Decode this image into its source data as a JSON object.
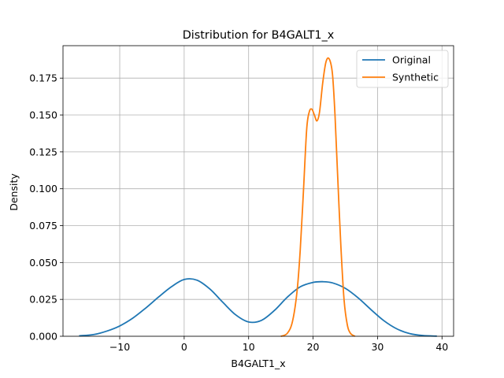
{
  "chart_data": {
    "type": "line",
    "title": "Distribution for B4GALT1_x",
    "xlabel": "B4GALT1_x",
    "ylabel": "Density",
    "xlim": [
      -18.8,
      41.8
    ],
    "ylim": [
      0,
      0.197
    ],
    "xticks": [
      -10,
      0,
      10,
      20,
      30,
      40
    ],
    "xtick_labels": [
      "−10",
      "0",
      "10",
      "20",
      "30",
      "40"
    ],
    "yticks": [
      0,
      0.025,
      0.05,
      0.075,
      0.1,
      0.125,
      0.15,
      0.175
    ],
    "ytick_labels": [
      "0.000",
      "0.025",
      "0.050",
      "0.075",
      "0.100",
      "0.125",
      "0.150",
      "0.175"
    ],
    "grid": true,
    "legend_position": "top-right",
    "series": [
      {
        "name": "Original",
        "color": "#1f77b4",
        "x": [
          -16.3,
          -14,
          -12,
          -10,
          -8,
          -6,
          -4,
          -2,
          0,
          2,
          4,
          6,
          8,
          10,
          12,
          14,
          16,
          18,
          20,
          21.5,
          23,
          25,
          27,
          29,
          31,
          33,
          35,
          37,
          39.2
        ],
        "y": [
          0.0003,
          0.0012,
          0.0035,
          0.007,
          0.0122,
          0.019,
          0.0265,
          0.0335,
          0.0385,
          0.038,
          0.032,
          0.023,
          0.0145,
          0.0097,
          0.0108,
          0.0175,
          0.0265,
          0.0335,
          0.0365,
          0.037,
          0.0362,
          0.0325,
          0.026,
          0.018,
          0.0105,
          0.005,
          0.0018,
          0.0005,
          0.0001
        ]
      },
      {
        "name": "Synthetic",
        "color": "#ff7f0e",
        "x": [
          15.0,
          16.0,
          16.8,
          17.5,
          18.0,
          18.5,
          19.0,
          19.4,
          19.8,
          20.2,
          20.6,
          21.0,
          21.5,
          22.0,
          22.5,
          23.0,
          23.4,
          23.8,
          24.3,
          24.8,
          25.3,
          25.8,
          26.5
        ],
        "y": [
          0.0,
          0.002,
          0.01,
          0.03,
          0.058,
          0.098,
          0.14,
          0.152,
          0.154,
          0.15,
          0.146,
          0.152,
          0.172,
          0.186,
          0.188,
          0.178,
          0.15,
          0.11,
          0.062,
          0.025,
          0.008,
          0.002,
          0.0
        ]
      }
    ]
  }
}
